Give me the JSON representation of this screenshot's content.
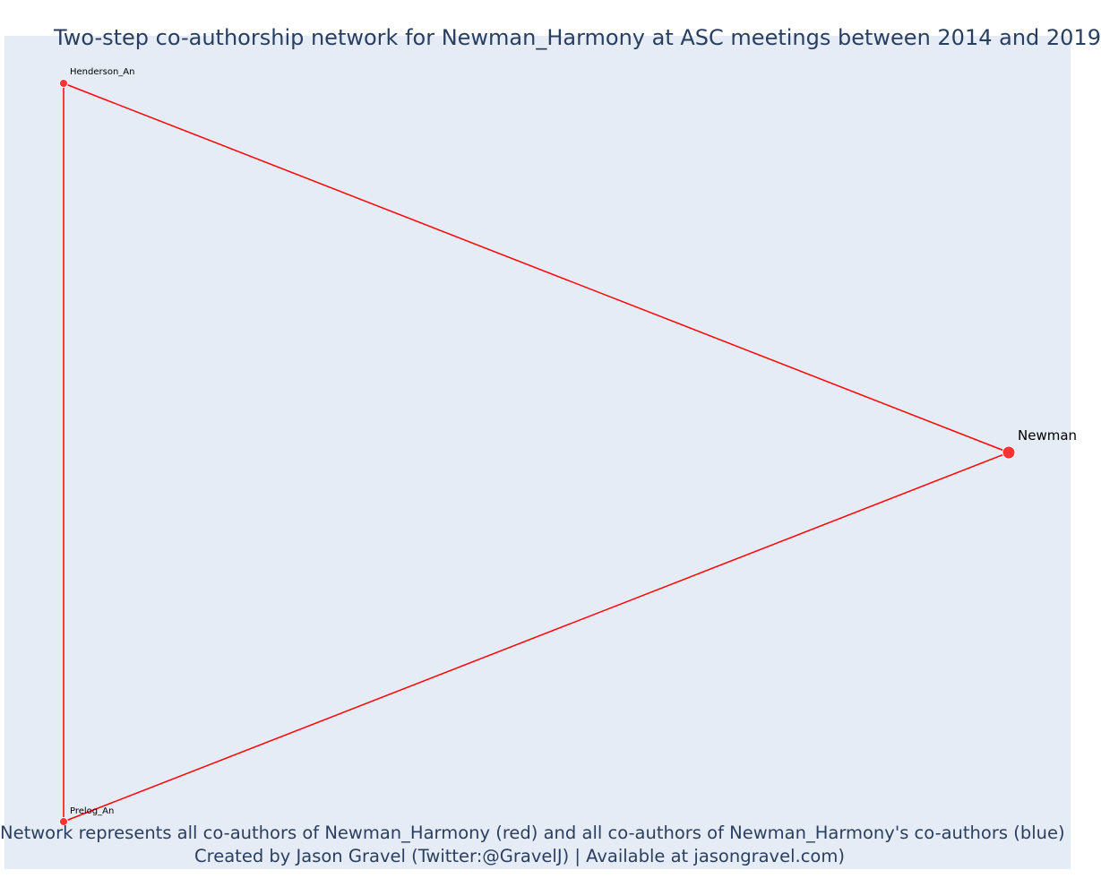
{
  "title": "Two-step co-authorship network for Newman_Harmony at ASC meetings between 2014 and 2019",
  "caption_line1": "Network represents all co-authors of Newman_Harmony (red) and all co-authors of Newman_Harmony's co-authors (blue)",
  "caption_line2": "Created by Jason Gravel (Twitter:@GravelJ) | Available at jasongravel.com)",
  "colors": {
    "plot_background": "#e5ecf6",
    "edge": "#ff0000",
    "node": "#ff3333",
    "text": "#2a3f5f"
  },
  "nodes": [
    {
      "id": "henderson",
      "label": "Henderson_An",
      "kind": "coauthor"
    },
    {
      "id": "prelog",
      "label": "Prelog_An",
      "kind": "coauthor"
    },
    {
      "id": "newman",
      "label": "Newman",
      "kind": "focal"
    }
  ],
  "edges": [
    {
      "source": "henderson",
      "target": "newman"
    },
    {
      "source": "prelog",
      "target": "newman"
    },
    {
      "source": "henderson",
      "target": "prelog"
    }
  ]
}
